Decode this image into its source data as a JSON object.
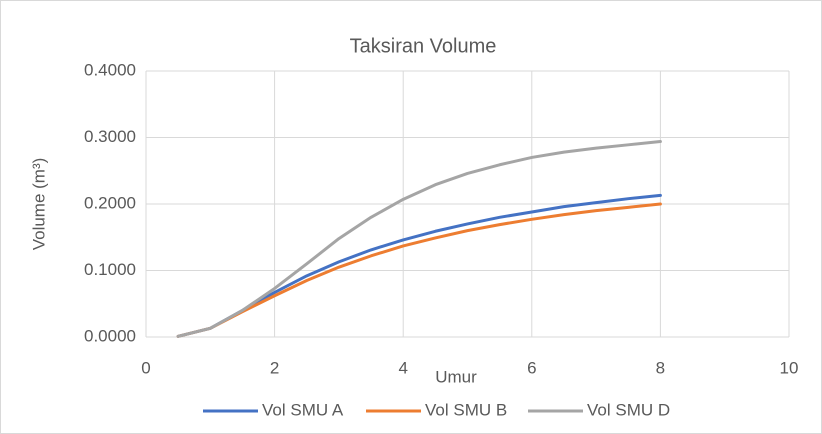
{
  "chart_data": {
    "type": "line",
    "title": "Taksiran Volume",
    "x_label": "Umur",
    "y_label": "Volume (m³)",
    "x": [
      0.5,
      1,
      1.5,
      2,
      2.5,
      3,
      3.5,
      4,
      4.5,
      5,
      5.5,
      6,
      6.5,
      7,
      7.5,
      8
    ],
    "series": [
      {
        "name": "Vol SMU A",
        "color": "#4472c4",
        "values": [
          0.001,
          0.013,
          0.04,
          0.067,
          0.092,
          0.113,
          0.131,
          0.146,
          0.159,
          0.17,
          0.18,
          0.188,
          0.196,
          0.202,
          0.208,
          0.213
        ]
      },
      {
        "name": "Vol SMU B",
        "color": "#ed7d31",
        "values": [
          0.001,
          0.013,
          0.038,
          0.062,
          0.085,
          0.105,
          0.122,
          0.137,
          0.149,
          0.16,
          0.169,
          0.177,
          0.184,
          0.19,
          0.195,
          0.2
        ]
      },
      {
        "name": "Vol SMU D",
        "color": "#a5a5a5",
        "values": [
          0.001,
          0.013,
          0.04,
          0.073,
          0.11,
          0.148,
          0.18,
          0.207,
          0.229,
          0.246,
          0.259,
          0.27,
          0.278,
          0.284,
          0.289,
          0.294
        ]
      }
    ],
    "xlim": [
      0,
      10
    ],
    "xticks": [
      0,
      2,
      4,
      6,
      8,
      10
    ],
    "ylim": [
      0,
      0.4
    ],
    "yticks": [
      {
        "value": 0,
        "label": "0.0000"
      },
      {
        "value": 0.1,
        "label": "0.1000"
      },
      {
        "value": 0.2,
        "label": "0.2000"
      },
      {
        "value": 0.3,
        "label": "0.3000"
      },
      {
        "value": 0.4,
        "label": "0.4000"
      }
    ],
    "grid": true,
    "legend": "bottom"
  }
}
